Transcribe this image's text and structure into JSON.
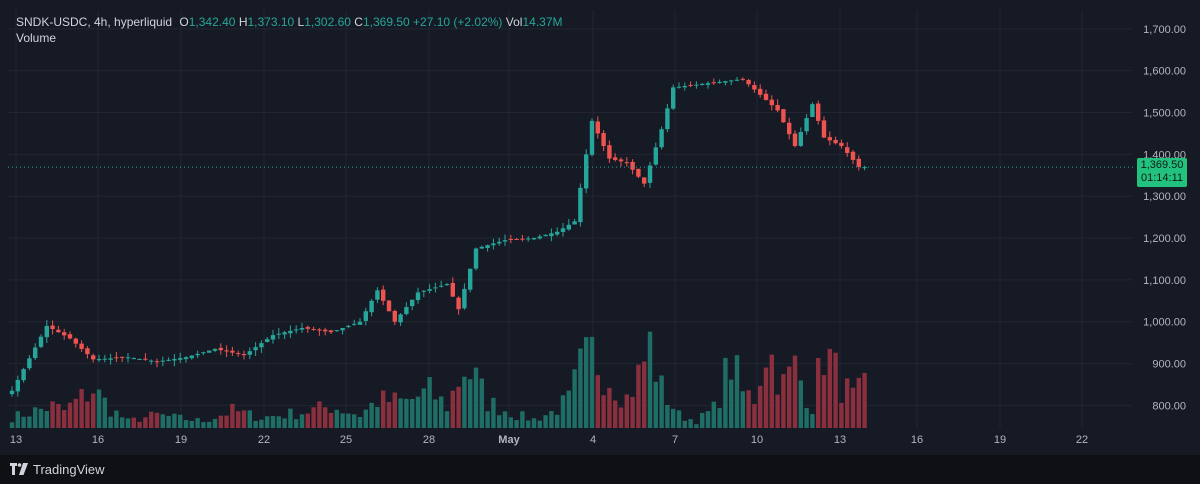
{
  "legend": {
    "symbol": "SNDK-USDC, 4h, hyperliquid",
    "open_label": "O",
    "open": "1,342.40",
    "high_label": "H",
    "high": "1,373.10",
    "low_label": "L",
    "low": "1,302.60",
    "close_label": "C",
    "close": "1,369.50",
    "change": "+27.10 (+2.02%)",
    "vol_label": "Vol",
    "vol": "14.37M",
    "volume_title": "Volume"
  },
  "price_tag": {
    "price": "1,369.50",
    "countdown": "01:14:11"
  },
  "branding": {
    "name": "TradingView",
    "icon": "tradingview-logo-icon"
  },
  "colors": {
    "up": "#26a69a",
    "down": "#ef5350",
    "up_volume": "#1f6e66",
    "down_volume": "#8a2f3d",
    "price_tag": "#22c27e",
    "background": "#161a25",
    "grid": "#232632"
  },
  "chart_data": {
    "type": "candlestick",
    "interval": "4h",
    "title": "",
    "y_axis": {
      "ticks": [
        "800.00",
        "900.00",
        "1,000.00",
        "1,100.00",
        "1,200.00",
        "1,300.00",
        "1,400.00",
        "1,500.00",
        "1,600.00",
        "1,700.00"
      ],
      "tick_values": [
        800,
        900,
        1000,
        1100,
        1200,
        1300,
        1400,
        1500,
        1600,
        1700
      ],
      "ylim": [
        746,
        1745
      ]
    },
    "x_axis": {
      "ticks": [
        "13",
        "16",
        "19",
        "22",
        "25",
        "28",
        "May",
        "4",
        "7",
        "10",
        "13",
        "16",
        "19",
        "22"
      ],
      "start": "Apr 13",
      "end": "May 23"
    },
    "current_price": 1369.5,
    "grid": true,
    "series": {
      "anchors": [
        [
          0,
          835
        ],
        [
          6,
          990
        ],
        [
          10,
          960
        ],
        [
          14,
          910
        ],
        [
          20,
          915
        ],
        [
          25,
          905
        ],
        [
          30,
          915
        ],
        [
          35,
          935
        ],
        [
          40,
          920
        ],
        [
          45,
          968
        ],
        [
          50,
          985
        ],
        [
          55,
          975
        ],
        [
          60,
          1000
        ],
        [
          63,
          1075
        ],
        [
          66,
          1000
        ],
        [
          70,
          1070
        ],
        [
          75,
          1090
        ],
        [
          77,
          1030
        ],
        [
          80,
          1175
        ],
        [
          85,
          1195
        ],
        [
          90,
          1200
        ],
        [
          94,
          1215
        ],
        [
          97,
          1240
        ],
        [
          100,
          1480
        ],
        [
          103,
          1390
        ],
        [
          106,
          1380
        ],
        [
          109,
          1330
        ],
        [
          112,
          1460
        ],
        [
          114,
          1560
        ],
        [
          120,
          1570
        ],
        [
          126,
          1580
        ],
        [
          128,
          1555
        ],
        [
          132,
          1505
        ],
        [
          135,
          1420
        ],
        [
          138,
          1520
        ],
        [
          140,
          1440
        ],
        [
          143,
          1420
        ],
        [
          146,
          1370
        ],
        [
          147,
          1369.5
        ]
      ],
      "volume": [
        [
          0,
          0.12
        ],
        [
          3,
          0.18
        ],
        [
          7,
          0.25
        ],
        [
          9,
          0.2
        ],
        [
          14,
          0.45
        ],
        [
          17,
          0.22
        ],
        [
          20,
          0.08
        ],
        [
          25,
          0.15
        ],
        [
          28,
          0.12
        ],
        [
          33,
          0.08
        ],
        [
          38,
          0.2
        ],
        [
          43,
          0.12
        ],
        [
          50,
          0.18
        ],
        [
          55,
          0.25
        ],
        [
          60,
          0.15
        ],
        [
          63,
          0.32
        ],
        [
          68,
          0.3
        ],
        [
          72,
          0.42
        ],
        [
          75,
          0.25
        ],
        [
          78,
          0.7
        ],
        [
          80,
          0.55
        ],
        [
          82,
          0.3
        ],
        [
          87,
          0.15
        ],
        [
          90,
          0.1
        ],
        [
          93,
          0.18
        ],
        [
          96,
          0.32
        ],
        [
          98,
          0.68
        ],
        [
          100,
          0.85
        ],
        [
          103,
          0.6
        ],
        [
          106,
          0.35
        ],
        [
          108,
          0.6
        ],
        [
          110,
          0.95
        ],
        [
          112,
          0.45
        ],
        [
          115,
          0.15
        ],
        [
          118,
          0.08
        ],
        [
          121,
          0.22
        ],
        [
          124,
          0.78
        ],
        [
          126,
          0.4
        ],
        [
          128,
          0.35
        ],
        [
          130,
          0.95
        ],
        [
          133,
          0.5
        ],
        [
          135,
          0.7
        ],
        [
          138,
          0.25
        ],
        [
          140,
          0.92
        ],
        [
          143,
          0.5
        ],
        [
          145,
          0.35
        ],
        [
          147,
          0.45
        ]
      ],
      "volume_max_label": "",
      "candle_count": 148
    }
  }
}
